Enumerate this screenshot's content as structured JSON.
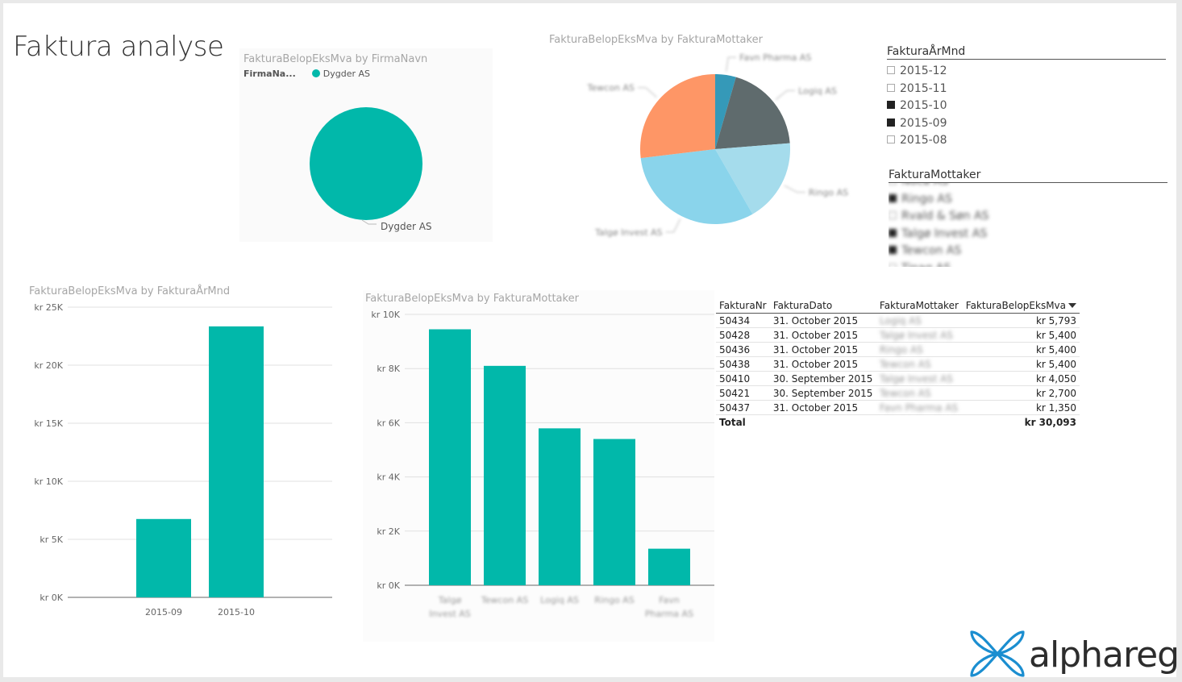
{
  "page": {
    "title": "Faktura analyse"
  },
  "colors": {
    "teal": "#01B8AA",
    "pie": [
      "#3599B8",
      "#5F6B6D",
      "#A5DCEC",
      "#8AD4EB",
      "#FE9666"
    ]
  },
  "pie_firma": {
    "title": "FakturaBelopEksMva by FirmaNavn",
    "legend_title": "FirmaNa...",
    "legend_item": "Dygder AS",
    "slice_label": "Dygder AS"
  },
  "pie_mottaker": {
    "title": "FakturaBelopEksMva by FakturaMottaker"
  },
  "bar_month": {
    "title": "FakturaBelopEksMva by FakturaÅrMnd"
  },
  "bar_mottaker": {
    "title": "FakturaBelopEksMva by FakturaMottaker"
  },
  "slicer_month": {
    "header": "FakturaÅrMnd",
    "items": [
      {
        "label": "2015-12",
        "checked": false
      },
      {
        "label": "2015-11",
        "checked": false
      },
      {
        "label": "2015-10",
        "checked": true
      },
      {
        "label": "2015-09",
        "checked": true
      },
      {
        "label": "2015-08",
        "checked": false
      }
    ]
  },
  "slicer_mottaker": {
    "header": "FakturaMottaker",
    "items": [
      {
        "label": "Noca AS",
        "checked": false
      },
      {
        "label": "Ringo AS",
        "checked": true
      },
      {
        "label": "Rvald & Søn AS",
        "checked": false
      },
      {
        "label": "Talgø Invest AS",
        "checked": true
      },
      {
        "label": "Tewcon AS",
        "checked": true
      },
      {
        "label": "Tinag AS",
        "checked": false
      }
    ]
  },
  "table": {
    "columns": [
      "FakturaNr",
      "FakturaDato",
      "FakturaMottaker",
      "FakturaBelopEksMva"
    ],
    "rows": [
      [
        "50434",
        "31. October 2015",
        "Logiq AS",
        "kr 5,793"
      ],
      [
        "50428",
        "31. October 2015",
        "Talgø Invest AS",
        "kr 5,400"
      ],
      [
        "50436",
        "31. October 2015",
        "Ringo AS",
        "kr 5,400"
      ],
      [
        "50438",
        "31. October 2015",
        "Tewcon AS",
        "kr 5,400"
      ],
      [
        "50410",
        "30. September 2015",
        "Talgø Invest AS",
        "kr 4,050"
      ],
      [
        "50421",
        "30. September 2015",
        "Tewcon AS",
        "kr 2,700"
      ],
      [
        "50437",
        "31. October 2015",
        "Favn Pharma AS",
        "kr 1,350"
      ]
    ],
    "total_label": "Total",
    "total_value": "kr 30,093"
  },
  "logo": {
    "text": "alphareg"
  },
  "chart_data": [
    {
      "type": "pie",
      "title": "FakturaBelopEksMva by FirmaNavn",
      "legend_title": "FirmaNa...",
      "categories": [
        "Dygder AS"
      ],
      "values": [
        30093
      ],
      "legend": "top-left"
    },
    {
      "type": "pie",
      "title": "FakturaBelopEksMva by FakturaMottaker",
      "categories": [
        "Favn Pharma AS",
        "Logiq AS",
        "Ringo AS",
        "Talgø Invest AS",
        "Tewcon AS"
      ],
      "values": [
        1350,
        5793,
        5400,
        9450,
        8100
      ]
    },
    {
      "type": "bar",
      "title": "FakturaBelopEksMva by FakturaÅrMnd",
      "categories": [
        "2015-09",
        "2015-10"
      ],
      "values": [
        6750,
        23343
      ],
      "ylim": [
        0,
        25000
      ],
      "yticks": [
        {
          "v": 0,
          "label": "kr 0K"
        },
        {
          "v": 5000,
          "label": "kr 5K"
        },
        {
          "v": 10000,
          "label": "kr 10K"
        },
        {
          "v": 15000,
          "label": "kr 15K"
        },
        {
          "v": 20000,
          "label": "kr 20K"
        },
        {
          "v": 25000,
          "label": "kr 25K"
        }
      ],
      "grid": true
    },
    {
      "type": "bar",
      "title": "FakturaBelopEksMva by FakturaMottaker",
      "categories": [
        "Talgø Invest AS",
        "Tewcon AS",
        "Logiq AS",
        "Ringo AS",
        "Favn Pharma AS"
      ],
      "values": [
        9450,
        8100,
        5793,
        5400,
        1350
      ],
      "ylim": [
        0,
        10000
      ],
      "yticks": [
        {
          "v": 0,
          "label": "kr 0K"
        },
        {
          "v": 2000,
          "label": "kr 2K"
        },
        {
          "v": 4000,
          "label": "kr 4K"
        },
        {
          "v": 6000,
          "label": "kr 6K"
        },
        {
          "v": 8000,
          "label": "kr 8K"
        },
        {
          "v": 10000,
          "label": "kr 10K"
        }
      ],
      "grid": true
    }
  ]
}
